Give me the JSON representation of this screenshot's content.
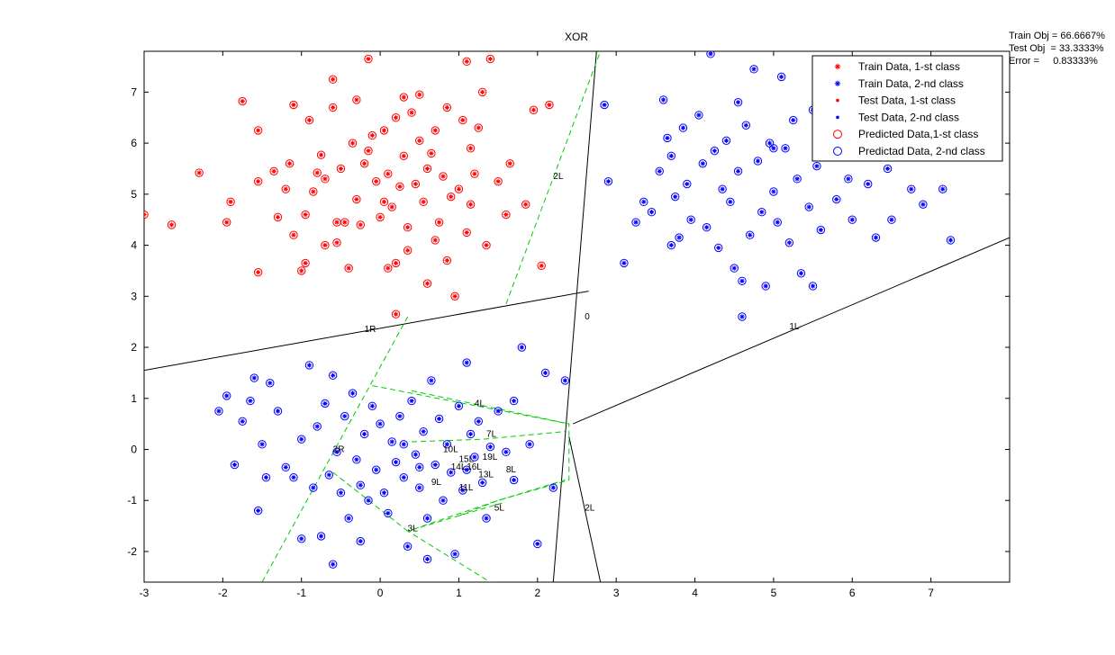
{
  "chart_data": {
    "type": "scatter",
    "title": "XOR",
    "xlabel": "",
    "ylabel": "",
    "xlim": [
      -3,
      8
    ],
    "ylim": [
      -2.6,
      7.8
    ],
    "x_ticks": [
      -3,
      -2,
      -1,
      0,
      1,
      2,
      3,
      4,
      5,
      6,
      7
    ],
    "y_ticks": [
      -2,
      -1,
      0,
      1,
      2,
      3,
      4,
      5,
      6,
      7
    ],
    "grid": false,
    "legend_position": "top-right",
    "legend": [
      {
        "label": "Train Data, 1-st class",
        "marker": "star",
        "color": "#ff0000"
      },
      {
        "label": "Train Data, 2-nd class",
        "marker": "star",
        "color": "#0000ff"
      },
      {
        "label": "Test Data, 1-st class",
        "marker": "dot",
        "color": "#ff0000"
      },
      {
        "label": "Test Data, 2-nd class",
        "marker": "dot",
        "color": "#0000ff"
      },
      {
        "label": "Predicted Data,1-st class",
        "marker": "circle",
        "color": "#ff0000"
      },
      {
        "label": "Predictad Data, 2-nd class",
        "marker": "circle",
        "color": "#0000ff"
      }
    ],
    "stats": [
      "Train Obj = 66.6667%",
      "Test Obj  = 33.3333%",
      "Error =     0.83333%"
    ],
    "series": [
      {
        "class": 1,
        "color": "#ff0000",
        "points": [
          [
            -3,
            4.6
          ],
          [
            -2.65,
            4.4
          ],
          [
            -2.3,
            5.42
          ],
          [
            -1.95,
            4.45
          ],
          [
            -1.9,
            4.85
          ],
          [
            -1.75,
            6.82
          ],
          [
            -1.55,
            6.25
          ],
          [
            -1.55,
            5.25
          ],
          [
            -1.55,
            3.47
          ],
          [
            -1.35,
            5.45
          ],
          [
            -1.3,
            4.55
          ],
          [
            -1.2,
            5.1
          ],
          [
            -1.15,
            5.6
          ],
          [
            -1.1,
            6.75
          ],
          [
            -1.1,
            4.2
          ],
          [
            -1.0,
            3.5
          ],
          [
            -0.95,
            3.65
          ],
          [
            -0.9,
            6.45
          ],
          [
            -0.85,
            5.05
          ],
          [
            -0.8,
            5.42
          ],
          [
            -0.75,
            5.77
          ],
          [
            -0.7,
            4.0
          ],
          [
            -0.7,
            5.3
          ],
          [
            -0.6,
            7.25
          ],
          [
            -0.6,
            6.7
          ],
          [
            -0.55,
            4.05
          ],
          [
            -0.5,
            5.5
          ],
          [
            -0.45,
            4.45
          ],
          [
            -0.4,
            3.55
          ],
          [
            -0.35,
            6.0
          ],
          [
            -0.3,
            4.9
          ],
          [
            -0.3,
            6.85
          ],
          [
            -0.25,
            4.4
          ],
          [
            -0.2,
            5.6
          ],
          [
            -0.15,
            5.85
          ],
          [
            -0.1,
            6.15
          ],
          [
            -0.05,
            5.25
          ],
          [
            0.0,
            4.55
          ],
          [
            0.05,
            6.25
          ],
          [
            0.1,
            3.55
          ],
          [
            0.1,
            5.4
          ],
          [
            0.15,
            4.75
          ],
          [
            0.2,
            6.5
          ],
          [
            0.2,
            3.65
          ],
          [
            0.25,
            5.15
          ],
          [
            0.3,
            6.9
          ],
          [
            0.3,
            5.75
          ],
          [
            0.35,
            4.35
          ],
          [
            0.4,
            6.6
          ],
          [
            0.45,
            5.2
          ],
          [
            0.5,
            6.05
          ],
          [
            0.55,
            4.85
          ],
          [
            0.6,
            3.25
          ],
          [
            0.65,
            5.8
          ],
          [
            0.7,
            6.25
          ],
          [
            0.75,
            4.45
          ],
          [
            0.8,
            5.35
          ],
          [
            0.85,
            6.7
          ],
          [
            0.9,
            4.95
          ],
          [
            0.95,
            3.0
          ],
          [
            1.0,
            5.1
          ],
          [
            1.05,
            6.45
          ],
          [
            1.1,
            4.25
          ],
          [
            1.15,
            5.9
          ],
          [
            1.2,
            5.4
          ],
          [
            1.25,
            6.3
          ],
          [
            1.3,
            7.0
          ],
          [
            1.35,
            4.0
          ],
          [
            1.4,
            7.65
          ],
          [
            1.5,
            5.25
          ],
          [
            1.6,
            4.6
          ],
          [
            1.65,
            5.6
          ],
          [
            1.85,
            4.8
          ],
          [
            1.95,
            6.65
          ],
          [
            2.05,
            3.6
          ],
          [
            2.15,
            6.75
          ],
          [
            -0.15,
            7.65
          ],
          [
            0.2,
            2.65
          ],
          [
            0.5,
            6.95
          ],
          [
            1.1,
            7.6
          ],
          [
            0.7,
            4.1
          ],
          [
            0.35,
            3.9
          ],
          [
            0.85,
            3.7
          ],
          [
            -0.55,
            4.45
          ],
          [
            0.05,
            4.85
          ],
          [
            0.6,
            5.5
          ],
          [
            1.15,
            4.8
          ],
          [
            -0.95,
            4.6
          ]
        ]
      },
      {
        "class": 2,
        "color": "#0000ff",
        "points": [
          [
            2.85,
            6.75
          ],
          [
            2.9,
            5.25
          ],
          [
            3.1,
            3.65
          ],
          [
            3.25,
            4.45
          ],
          [
            3.35,
            4.85
          ],
          [
            3.45,
            4.65
          ],
          [
            3.55,
            5.45
          ],
          [
            3.6,
            6.85
          ],
          [
            3.65,
            6.1
          ],
          [
            3.7,
            5.75
          ],
          [
            3.75,
            4.95
          ],
          [
            3.8,
            4.15
          ],
          [
            3.85,
            6.3
          ],
          [
            3.9,
            5.2
          ],
          [
            3.95,
            4.5
          ],
          [
            4.05,
            6.55
          ],
          [
            4.1,
            5.6
          ],
          [
            4.15,
            4.35
          ],
          [
            4.2,
            7.75
          ],
          [
            4.25,
            5.85
          ],
          [
            4.3,
            3.95
          ],
          [
            4.35,
            5.1
          ],
          [
            4.4,
            6.05
          ],
          [
            4.45,
            4.85
          ],
          [
            4.5,
            3.55
          ],
          [
            4.55,
            5.45
          ],
          [
            4.6,
            2.6
          ],
          [
            4.65,
            6.35
          ],
          [
            4.7,
            4.2
          ],
          [
            4.75,
            7.45
          ],
          [
            4.8,
            5.65
          ],
          [
            4.85,
            4.65
          ],
          [
            4.9,
            3.2
          ],
          [
            4.95,
            6.0
          ],
          [
            5.0,
            5.05
          ],
          [
            5.05,
            4.45
          ],
          [
            5.1,
            7.3
          ],
          [
            5.15,
            5.9
          ],
          [
            5.2,
            4.05
          ],
          [
            5.25,
            6.45
          ],
          [
            5.3,
            5.3
          ],
          [
            5.35,
            3.45
          ],
          [
            5.45,
            4.75
          ],
          [
            5.5,
            6.65
          ],
          [
            5.55,
            5.55
          ],
          [
            5.6,
            4.3
          ],
          [
            5.7,
            6.25
          ],
          [
            5.8,
            4.9
          ],
          [
            5.9,
            5.8
          ],
          [
            6.0,
            4.5
          ],
          [
            6.1,
            6.95
          ],
          [
            6.2,
            5.2
          ],
          [
            6.3,
            4.15
          ],
          [
            6.45,
            5.5
          ],
          [
            6.6,
            6.3
          ],
          [
            6.75,
            5.1
          ],
          [
            6.9,
            4.8
          ],
          [
            7.0,
            5.9
          ],
          [
            7.15,
            5.1
          ],
          [
            7.25,
            4.1
          ],
          [
            5.5,
            3.2
          ],
          [
            4.6,
            3.3
          ],
          [
            5.95,
            5.3
          ],
          [
            3.7,
            4.0
          ],
          [
            4.55,
            6.8
          ],
          [
            5.8,
            6.3
          ],
          [
            6.5,
            4.5
          ],
          [
            5.0,
            5.9
          ],
          [
            -2.05,
            0.75
          ],
          [
            -1.95,
            1.05
          ],
          [
            -1.85,
            -0.3
          ],
          [
            -1.75,
            0.55
          ],
          [
            -1.65,
            0.95
          ],
          [
            -1.6,
            1.4
          ],
          [
            -1.55,
            -1.2
          ],
          [
            -1.5,
            0.1
          ],
          [
            -1.45,
            -0.55
          ],
          [
            -1.4,
            1.3
          ],
          [
            -1.3,
            0.75
          ],
          [
            -1.2,
            -0.35
          ],
          [
            -1.1,
            -0.55
          ],
          [
            -1.0,
            0.2
          ],
          [
            -0.9,
            1.65
          ],
          [
            -0.85,
            -0.75
          ],
          [
            -0.8,
            0.45
          ],
          [
            -0.75,
            -1.7
          ],
          [
            -0.7,
            0.9
          ],
          [
            -0.65,
            -0.5
          ],
          [
            -0.6,
            1.45
          ],
          [
            -0.55,
            -0.05
          ],
          [
            -0.5,
            -0.85
          ],
          [
            -0.45,
            0.65
          ],
          [
            -0.4,
            -1.35
          ],
          [
            -0.35,
            1.1
          ],
          [
            -0.3,
            -0.2
          ],
          [
            -0.25,
            -0.7
          ],
          [
            -0.2,
            0.3
          ],
          [
            -0.15,
            -1.0
          ],
          [
            -0.1,
            0.85
          ],
          [
            -0.05,
            -0.4
          ],
          [
            0.0,
            0.5
          ],
          [
            0.05,
            -0.85
          ],
          [
            0.1,
            -1.25
          ],
          [
            0.15,
            0.15
          ],
          [
            0.2,
            -0.25
          ],
          [
            0.25,
            0.65
          ],
          [
            0.3,
            -0.55
          ],
          [
            0.35,
            -1.9
          ],
          [
            0.4,
            0.95
          ],
          [
            0.45,
            -0.1
          ],
          [
            0.5,
            -0.75
          ],
          [
            0.55,
            0.35
          ],
          [
            0.6,
            -1.35
          ],
          [
            0.65,
            1.35
          ],
          [
            0.7,
            -0.3
          ],
          [
            0.75,
            0.6
          ],
          [
            0.8,
            -1.0
          ],
          [
            0.85,
            0.1
          ],
          [
            0.9,
            -0.45
          ],
          [
            0.95,
            -2.05
          ],
          [
            1.0,
            0.85
          ],
          [
            1.05,
            -0.8
          ],
          [
            1.1,
            1.7
          ],
          [
            1.15,
            0.3
          ],
          [
            1.2,
            -0.15
          ],
          [
            1.25,
            0.55
          ],
          [
            1.3,
            -0.65
          ],
          [
            1.35,
            -1.35
          ],
          [
            1.4,
            0.05
          ],
          [
            1.5,
            0.75
          ],
          [
            1.6,
            -0.05
          ],
          [
            1.7,
            -0.6
          ],
          [
            1.8,
            2.0
          ],
          [
            1.9,
            0.1
          ],
          [
            2.0,
            -1.85
          ],
          [
            2.1,
            1.5
          ],
          [
            2.2,
            -0.75
          ],
          [
            2.35,
            1.35
          ],
          [
            1.7,
            0.95
          ],
          [
            0.5,
            -0.35
          ],
          [
            0.3,
            0.1
          ],
          [
            1.1,
            -0.4
          ],
          [
            -0.6,
            -2.25
          ],
          [
            -1.0,
            -1.75
          ],
          [
            -0.25,
            -1.8
          ],
          [
            0.6,
            -2.15
          ]
        ]
      }
    ],
    "decision_lines": [
      {
        "label": "0",
        "color": "#000000",
        "points": [
          [
            2.2,
            -2.6
          ],
          [
            2.75,
            7.8
          ]
        ]
      },
      {
        "label": "1R",
        "color": "#000000",
        "points": [
          [
            -3,
            1.55
          ],
          [
            2.65,
            3.1
          ]
        ]
      },
      {
        "label": "1L",
        "color": "#000000",
        "points": [
          [
            2.45,
            0.5
          ],
          [
            8,
            4.15
          ]
        ]
      },
      {
        "label": "2L",
        "color": "#000000",
        "points": [
          [
            2.4,
            0.25
          ],
          [
            2.8,
            -2.6
          ]
        ]
      },
      {
        "label": "2L",
        "color": "#00cc00",
        "dashed": true,
        "points": [
          [
            1.6,
            2.85
          ],
          [
            2.8,
            7.8
          ]
        ]
      },
      {
        "label": "2R",
        "color": "#00cc00",
        "dashed": true,
        "points": [
          [
            0.35,
            2.6
          ],
          [
            -1.5,
            -2.6
          ]
        ]
      },
      {
        "label": "",
        "color": "#00cc00",
        "dashed": true,
        "points": [
          [
            -0.1,
            1.25
          ],
          [
            2.4,
            0.5
          ],
          [
            2.4,
            -0.6
          ],
          [
            1.5,
            -1.0
          ],
          [
            0.35,
            -1.6
          ],
          [
            1.4,
            -2.6
          ]
        ]
      },
      {
        "label": "4L",
        "color": "#00cc00",
        "dashed": true,
        "points": [
          [
            0.4,
            1.15
          ],
          [
            2.4,
            0.5
          ]
        ]
      },
      {
        "label": "3L",
        "color": "#00cc00",
        "dashed": true,
        "points": [
          [
            -0.6,
            -0.45
          ],
          [
            0.35,
            -1.6
          ],
          [
            1.0,
            -1.3
          ],
          [
            1.55,
            -1.05
          ]
        ]
      },
      {
        "label": "7L",
        "color": "#00cc00",
        "dashed": true,
        "points": [
          [
            0.4,
            0.15
          ],
          [
            1.3,
            0.2
          ],
          [
            2.35,
            0.35
          ]
        ]
      },
      {
        "label": "5L",
        "color": "#00cc00",
        "dashed": true,
        "points": [
          [
            1.0,
            -1.3
          ],
          [
            1.5,
            -1.0
          ],
          [
            2.35,
            -0.6
          ]
        ]
      }
    ],
    "annotations": [
      {
        "text": "0",
        "x": 2.6,
        "y": 2.55
      },
      {
        "text": "1R",
        "x": -0.2,
        "y": 2.3
      },
      {
        "text": "1L",
        "x": 5.2,
        "y": 2.35
      },
      {
        "text": "2L",
        "x": 2.2,
        "y": 5.3
      },
      {
        "text": "2L",
        "x": 2.6,
        "y": -1.2
      },
      {
        "text": "2R",
        "x": -0.6,
        "y": -0.05
      },
      {
        "text": "4L",
        "x": 1.2,
        "y": 0.85
      },
      {
        "text": "7L",
        "x": 1.35,
        "y": 0.25
      },
      {
        "text": "10L",
        "x": 0.8,
        "y": -0.05
      },
      {
        "text": "11L",
        "x": 1.0,
        "y": -0.8
      },
      {
        "text": "13L",
        "x": 1.25,
        "y": -0.55
      },
      {
        "text": "14L",
        "x": 0.9,
        "y": -0.4
      },
      {
        "text": "15L",
        "x": 1.0,
        "y": -0.25
      },
      {
        "text": "16L",
        "x": 1.1,
        "y": -0.4
      },
      {
        "text": "19L",
        "x": 1.3,
        "y": -0.2
      },
      {
        "text": "8L",
        "x": 1.6,
        "y": -0.45
      },
      {
        "text": "9L",
        "x": 0.65,
        "y": -0.7
      },
      {
        "text": "5L",
        "x": 1.45,
        "y": -1.2
      },
      {
        "text": "3L",
        "x": 0.35,
        "y": -1.6
      }
    ]
  }
}
